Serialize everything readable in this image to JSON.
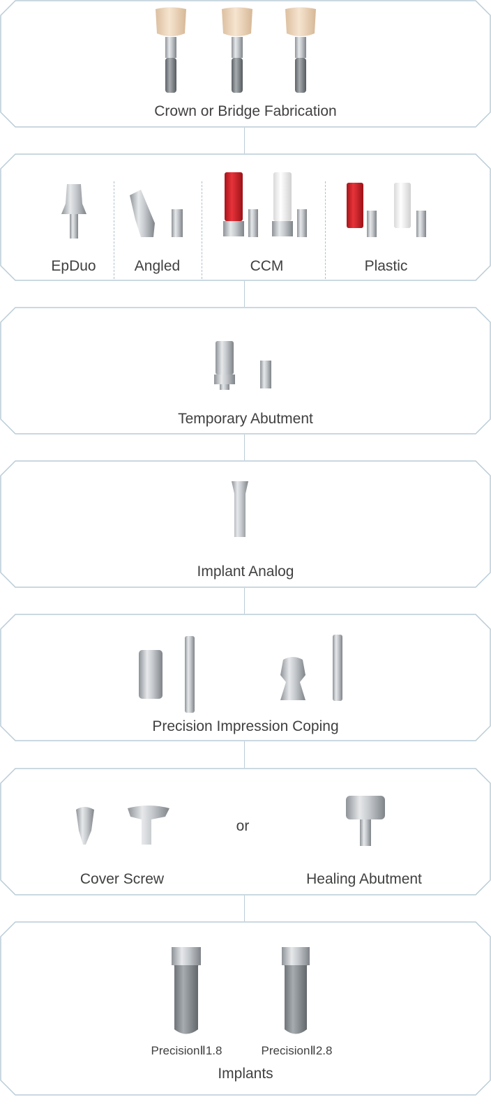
{
  "colors": {
    "frame": "#b9ccd7",
    "metal": "#b8bcc0",
    "red": "#d9232b",
    "white_plastic": "#f5f5f5",
    "crown": "#efd7bd"
  },
  "panels": {
    "crown": {
      "label": "Crown or Bridge Fabrication"
    },
    "abutments": {
      "items": [
        {
          "label": "EpDuo"
        },
        {
          "label": "Angled"
        },
        {
          "label": "CCM"
        },
        {
          "label": "Plastic"
        }
      ]
    },
    "temporary": {
      "label": "Temporary Abutment"
    },
    "analog": {
      "label": "Implant Analog"
    },
    "coping": {
      "label": "Precision Impression Coping"
    },
    "healing": {
      "cover_label": "Cover Screw",
      "or_label": "or",
      "healing_label": "Healing Abutment"
    },
    "implants": {
      "label": "Implants",
      "items": [
        {
          "label": "PrecisionⅡ1.8"
        },
        {
          "label": "PrecisionⅡ2.8"
        }
      ]
    }
  }
}
